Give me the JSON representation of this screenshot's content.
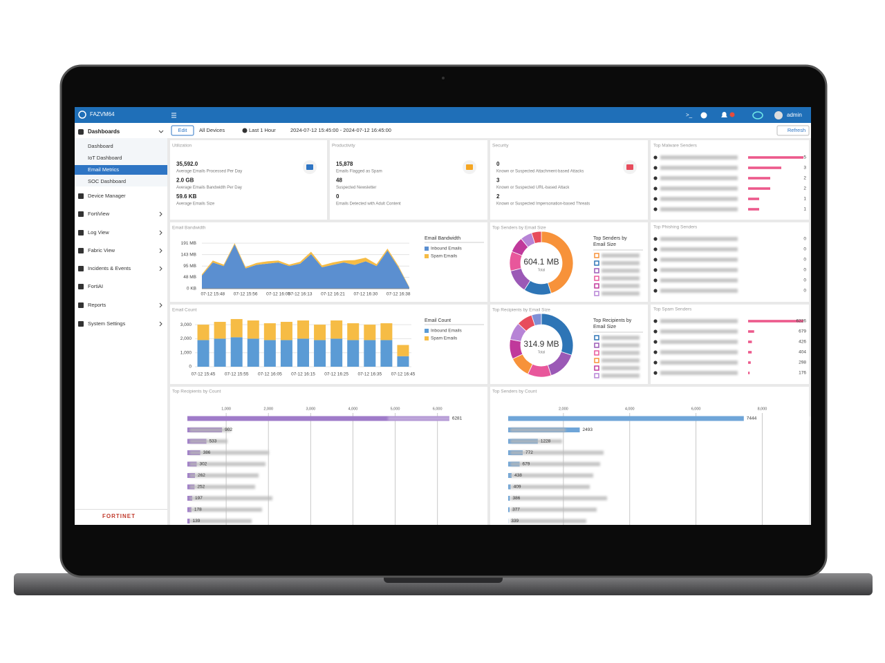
{
  "app": {
    "name": "FAZVM64",
    "user": "admin"
  },
  "toolbar": {
    "edit": "Edit",
    "devices": "All Devices",
    "range": "Last 1 Hour",
    "period": "2024-07-12 15:45:00 - 2024-07-12 16:45:00",
    "refresh": "Refresh"
  },
  "sidebar": {
    "section": "Dashboards",
    "sub": [
      "Dashboard",
      "IoT Dashboard",
      "Email Metrics",
      "SOC Dashboard"
    ],
    "selected": 2,
    "items": [
      "Device Manager",
      "FortiView",
      "Log View",
      "Fabric View",
      "Incidents & Events",
      "FortiAI",
      "Reports",
      "System Settings"
    ],
    "brand": "FORTINET"
  },
  "stats": [
    {
      "title": "Utilization",
      "color": "#2e75c4",
      "rows": [
        {
          "value": "35,592.0",
          "label": "Average Emails Processed Per Day"
        },
        {
          "value": "2.0 GB",
          "label": "Average Emails Bandwidth Per Day"
        },
        {
          "value": "59.6 KB",
          "label": "Average Emails Size"
        }
      ]
    },
    {
      "title": "Productivity",
      "color": "#f5a623",
      "rows": [
        {
          "value": "15,878",
          "label": "Emails Flagged as Spam"
        },
        {
          "value": "48",
          "label": "Suspected Newsletter"
        },
        {
          "value": "0",
          "label": "Emails Detected with Adult Content"
        }
      ]
    },
    {
      "title": "Security",
      "color": "#e74c5c",
      "rows": [
        {
          "value": "0",
          "label": "Known or Suspected Attachment-based Attacks"
        },
        {
          "value": "3",
          "label": "Known or Suspected URL-based Attack"
        },
        {
          "value": "2",
          "label": "Known or Suspected Impersonation-based Threats"
        }
      ]
    }
  ],
  "top_lists": [
    {
      "title": "Top Malware Senders",
      "values": [
        5,
        3,
        2,
        2,
        1,
        1
      ],
      "xlim": [
        0,
        5
      ],
      "color": "#ec5a8c"
    },
    {
      "title": "Top Phishing Senders",
      "values": [
        0,
        0,
        0,
        0,
        0,
        0
      ],
      "xlim": [
        0,
        1
      ],
      "color": "#ec5a8c"
    },
    {
      "title": "Top Spam Senders",
      "values": [
        6226,
        679,
        426,
        404,
        298,
        176
      ],
      "xlim": [
        0,
        6226
      ],
      "color": "#ec5a8c"
    }
  ],
  "bandwidth": {
    "type": "area",
    "title": "Email Bandwidth",
    "legend_title": "Email Bandwidth",
    "categories": [
      null,
      "07-12 15:48",
      null,
      null,
      "07-12 15:56",
      null,
      null,
      "07-12 16:05",
      null,
      "07-12 16:13",
      null,
      null,
      "07-12 16:21",
      null,
      null,
      "07-12 16:30",
      null,
      null,
      "07-12 16:38",
      null
    ],
    "ylim": [
      0,
      200
    ],
    "yticks": [
      {
        "value": 0,
        "label": "0 KB"
      },
      {
        "value": 48,
        "label": "48 MB"
      },
      {
        "value": 95,
        "label": "95 MB"
      },
      {
        "value": 143,
        "label": "143 MB"
      },
      {
        "value": 191,
        "label": "191 MB"
      }
    ],
    "series": [
      {
        "name": "Inbound Emails",
        "color": "#5b8fd0",
        "values": [
          55,
          110,
          95,
          186,
          85,
          100,
          105,
          110,
          95,
          105,
          145,
          90,
          100,
          110,
          100,
          115,
          95,
          160,
          90,
          5
        ]
      },
      {
        "name": "Spam Emails",
        "color": "#f6bc45",
        "values": [
          5,
          8,
          6,
          5,
          6,
          8,
          10,
          8,
          6,
          8,
          10,
          8,
          10,
          8,
          20,
          15,
          8,
          8,
          6,
          2
        ]
      }
    ]
  },
  "count": {
    "type": "bar",
    "stacked": true,
    "title": "Email Count",
    "legend_title": "Email Count",
    "categories": [
      "07-12 15:45",
      null,
      "07-12 15:55",
      null,
      "07-12 16:05",
      null,
      "07-12 16:15",
      null,
      "07-12 16:25",
      null,
      "07-12 16:35",
      null,
      "07-12 16:45"
    ],
    "ylim": [
      0,
      3300
    ],
    "yticks": [
      0,
      {
        "value": 1000,
        "label": "1,000"
      },
      {
        "value": 2000,
        "label": "2,000"
      },
      {
        "value": 3000,
        "label": "3,000"
      }
    ],
    "series": [
      {
        "name": "Inbound Emails",
        "color": "#5b9bd5",
        "values": [
          1900,
          2000,
          2100,
          2000,
          1900,
          1900,
          2000,
          1900,
          2000,
          1900,
          1900,
          1900,
          750
        ]
      },
      {
        "name": "Spam Emails",
        "color": "#f6bc45",
        "values": [
          1100,
          1200,
          1300,
          1300,
          1200,
          1300,
          1300,
          1100,
          1300,
          1200,
          1100,
          1200,
          800
        ]
      }
    ]
  },
  "donuts": [
    {
      "type": "pie",
      "title": "Top Senders by Email Size",
      "legend_title": [
        "Top Senders by",
        "Email Size"
      ],
      "total": "604.1 MB",
      "total_label": "Total",
      "values": [
        45,
        14,
        12,
        10,
        8,
        6,
        5
      ],
      "colors": [
        "#f7923a",
        "#2e75b6",
        "#9b59b6",
        "#e8579b",
        "#c0399b",
        "#b784d6",
        "#e74c5c"
      ]
    },
    {
      "type": "pie",
      "title": "Top Recipients by Email Size",
      "legend_title": [
        "Top Recipients by",
        "Email Size"
      ],
      "total": "314.9 MB",
      "total_label": "Total",
      "values": [
        30,
        15,
        12,
        11,
        10,
        9,
        8,
        5
      ],
      "colors": [
        "#2e75b6",
        "#9b59b6",
        "#e8579b",
        "#f7923a",
        "#c0399b",
        "#b784d6",
        "#e74c5c",
        "#7f8fd6"
      ]
    }
  ],
  "hbars": [
    {
      "type": "bar",
      "title": "Top Recipients by Count",
      "color": "#9f7bc9",
      "values": [
        6281,
        902,
        533,
        386,
        302,
        262,
        252,
        197,
        178,
        139
      ],
      "xlim": [
        0,
        6300
      ],
      "xticks": [
        {
          "value": 1000,
          "label": "1,000"
        },
        {
          "value": 2000,
          "label": "2,000"
        },
        {
          "value": 3000,
          "label": "3,000"
        },
        {
          "value": 4000,
          "label": "4,000"
        },
        {
          "value": 5000,
          "label": "5,000"
        },
        {
          "value": 6000,
          "label": "6,000"
        }
      ]
    },
    {
      "type": "bar",
      "title": "Top Senders by Count",
      "color": "#6fa5d8",
      "values": [
        7444,
        2493,
        1228,
        772,
        679,
        438,
        409,
        386,
        377,
        339
      ],
      "xlim": [
        0,
        8700
      ],
      "xticks": [
        {
          "value": 2000,
          "label": "2,000"
        },
        {
          "value": 4000,
          "label": "4,000"
        },
        {
          "value": 6000,
          "label": "6,000"
        },
        {
          "value": 8000,
          "label": "8,000"
        }
      ]
    }
  ]
}
